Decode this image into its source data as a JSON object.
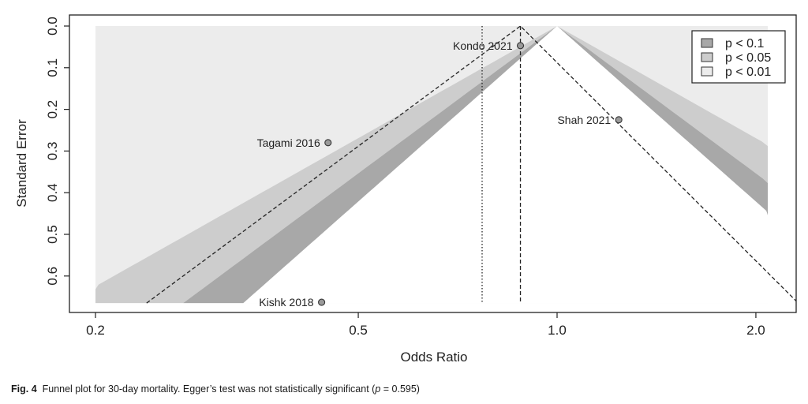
{
  "chart_data": {
    "type": "scatter",
    "subtype": "contour-enhanced funnel plot",
    "xlabel": "Odds Ratio",
    "ylabel": "Standard Error",
    "x_scale": "log",
    "x_ticks": [
      "0.2",
      "0.5",
      "1.0",
      "2.0"
    ],
    "x_tick_values": [
      0.2,
      0.5,
      1.0,
      2.0
    ],
    "xlim": [
      0.2,
      2.3
    ],
    "ylim": [
      0.0,
      0.665
    ],
    "y_reversed": true,
    "y_ticks": [
      "0.0",
      "0.1",
      "0.2",
      "0.3",
      "0.4",
      "0.5",
      "0.6"
    ],
    "y_tick_values": [
      0.0,
      0.1,
      0.2,
      0.3,
      0.4,
      0.5,
      0.6
    ],
    "points": [
      {
        "label": "Kondo 2021",
        "or": 0.88,
        "se": 0.047
      },
      {
        "label": "Tagami 2016",
        "or": 0.45,
        "se": 0.28
      },
      {
        "label": "Shah 2021",
        "or": 1.24,
        "se": 0.225
      },
      {
        "label": "Kishk 2018",
        "or": 0.44,
        "se": 0.663
      }
    ],
    "contours": [
      {
        "label": "p < 0.1",
        "z": 1.645,
        "color": "#a8a8a8"
      },
      {
        "label": "p < 0.05",
        "z": 1.96,
        "color": "#cdcdcd"
      },
      {
        "label": "p < 0.01",
        "z": 2.576,
        "color": "#ececec"
      }
    ],
    "reference_line_or": 1.0,
    "pooled_estimate_or": 0.88,
    "random_effects_line_or": 0.77,
    "legend_position": "top-right",
    "grid": false
  },
  "caption": {
    "fig_label": "Fig. 4",
    "text_before": "Funnel plot for 30-day mortality. Egger’s test was not statistically significant (",
    "p_symbol": "p",
    "text_after": " = 0.595)"
  }
}
